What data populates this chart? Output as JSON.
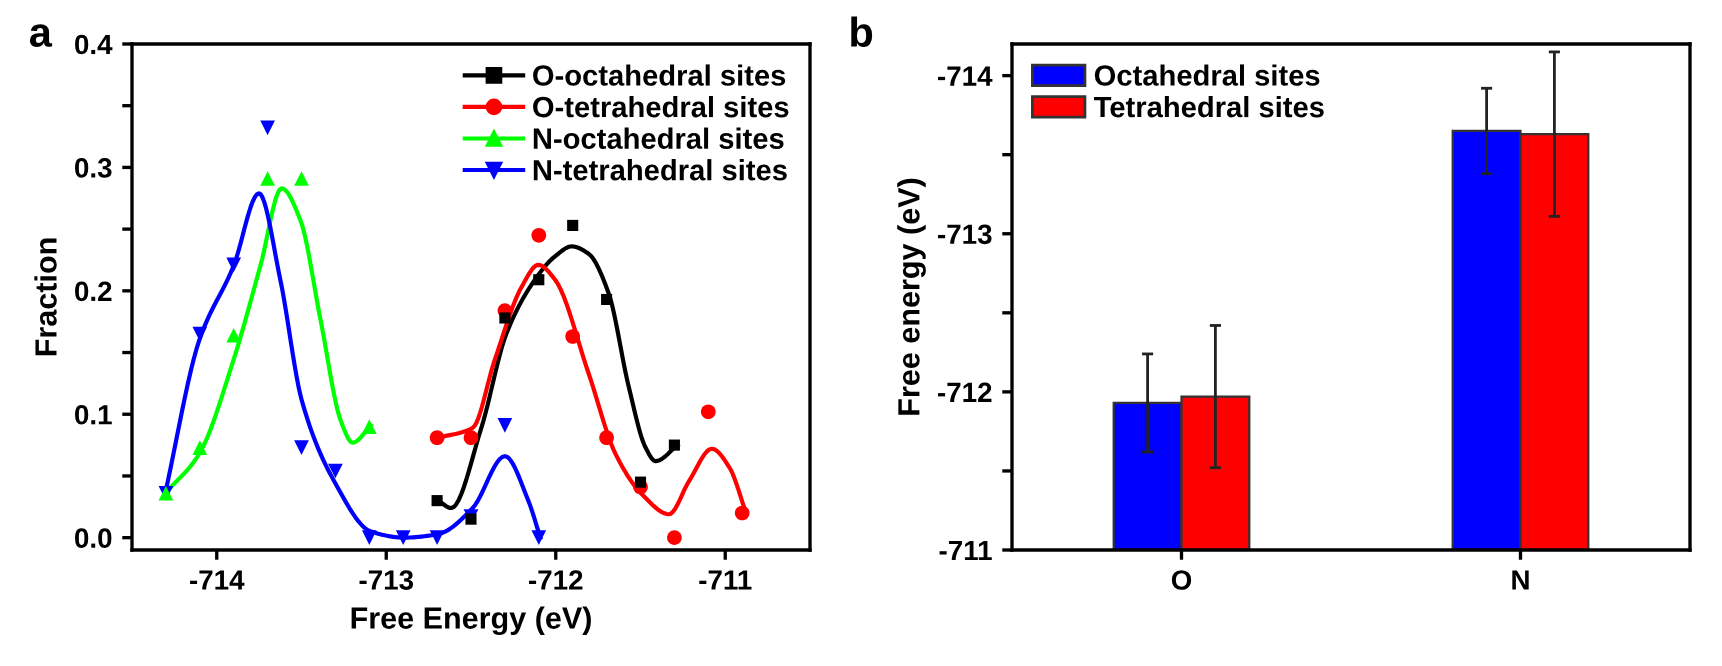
{
  "chart_data": [
    {
      "type": "scatter",
      "annotations": [
        "a"
      ],
      "xlabel": "Free Energy (eV)",
      "ylabel": "Fraction",
      "xlim": [
        -714.5,
        -710.5
      ],
      "xticks": [
        -714,
        -713,
        -712,
        -711
      ],
      "ylim": [
        -0.01,
        0.4
      ],
      "yticks": [
        {
          "value": 0,
          "label": "0.0"
        },
        {
          "value": 0.05,
          "label": null
        },
        0.1,
        {
          "value": 0.15,
          "label": null
        },
        0.2,
        {
          "value": 0.25,
          "label": null
        },
        0.3,
        {
          "value": 0.35,
          "label": null
        },
        0.4
      ],
      "legend": "top right",
      "grid": false,
      "series": [
        {
          "name": "O-octahedral sites",
          "type": "scatter",
          "marker": "square",
          "color": "#000000",
          "x": [
            -712.7,
            -712.5,
            -712.3,
            -712.1,
            -711.9,
            -711.7,
            -711.5,
            -711.3
          ],
          "values": [
            0.03,
            0.015,
            0.178,
            0.209,
            0.253,
            0.193,
            0.045,
            0.075
          ]
        },
        {
          "name": "O-tetrahedral sites",
          "type": "scatter",
          "marker": "circle",
          "color": "#ff0000",
          "x": [
            -712.7,
            -712.5,
            -712.3,
            -712.1,
            -711.9,
            -711.7,
            -711.5,
            -711.3,
            -711.1,
            -710.9
          ],
          "values": [
            0.081,
            0.081,
            0.184,
            0.245,
            0.163,
            0.081,
            0.041,
            0.0,
            0.102,
            0.02
          ]
        },
        {
          "name": "N-octahedral sites",
          "type": "scatter",
          "marker": "triangle",
          "color": "#00ff00",
          "x": [
            -714.3,
            -714.1,
            -713.9,
            -713.7,
            -713.5,
            -713.1
          ],
          "values": [
            0.036,
            0.073,
            0.164,
            0.291,
            0.291,
            0.09
          ]
        },
        {
          "name": "N-tetrahedral sites",
          "type": "scatter",
          "marker": "triangle_down",
          "color": "#0000ff",
          "x": [
            -714.3,
            -714.1,
            -713.9,
            -713.7,
            -713.5,
            -713.3,
            -713.1,
            -712.9,
            -712.7,
            -712.5,
            -712.3,
            -712.1
          ],
          "values": [
            0.036,
            0.165,
            0.221,
            0.332,
            0.073,
            0.054,
            0.0,
            0.0,
            0.0,
            0.017,
            0.091,
            0.0
          ]
        },
        {
          "type": "line",
          "color": "#000000",
          "x": [
            -712.692,
            -712.617,
            -712.439,
            -712.292,
            -712.123,
            -712.004,
            -711.905,
            -711.806,
            -711.688,
            -711.569,
            -711.47,
            -711.411,
            -711.281
          ],
          "values": [
            0.03,
            0.024,
            0.089,
            0.165,
            0.209,
            0.228,
            0.236,
            0.23,
            0.198,
            0.122,
            0.073,
            0.062,
            0.075
          ]
        },
        {
          "type": "line",
          "color": "#ff0000",
          "x": [
            -712.692,
            -712.49,
            -712.36,
            -712.202,
            -712.103,
            -712.004,
            -711.806,
            -711.648,
            -711.49,
            -711.332,
            -711.213,
            -711.079,
            -710.976,
            -710.877
          ],
          "values": [
            0.081,
            0.089,
            0.144,
            0.203,
            0.221,
            0.209,
            0.133,
            0.068,
            0.035,
            0.019,
            0.046,
            0.072,
            0.057,
            0.02
          ]
        },
        {
          "type": "line",
          "color": "#00ff00",
          "x": [
            -714.304,
            -714.103,
            -713.901,
            -713.743,
            -713.617,
            -713.506,
            -713.387,
            -713.269,
            -713.198,
            -713.091
          ],
          "values": [
            0.036,
            0.068,
            0.144,
            0.22,
            0.283,
            0.257,
            0.176,
            0.095,
            0.077,
            0.091
          ]
        },
        {
          "type": "line",
          "color": "#0000ff",
          "x": [
            -714.304,
            -714.103,
            -713.901,
            -713.751,
            -713.625,
            -713.498,
            -713.308,
            -713.091,
            -712.893,
            -712.692,
            -712.49,
            -712.3,
            -712.162,
            -712.091
          ],
          "values": [
            0.036,
            0.16,
            0.22,
            0.279,
            0.209,
            0.111,
            0.046,
            0.005,
            0.0,
            0.003,
            0.024,
            0.066,
            0.03,
            0.0
          ]
        }
      ]
    },
    {
      "type": "bar",
      "annotations": [
        "b"
      ],
      "ylabel": "Free energy (eV)",
      "categories": [
        "O",
        "N"
      ],
      "ylim": [
        -711,
        -714.2
      ],
      "yticks": [
        -711,
        {
          "value": -711.5,
          "label": null
        },
        -712,
        {
          "value": -712.5,
          "label": null
        },
        -713,
        {
          "value": -713.5,
          "label": null
        },
        -714
      ],
      "legend": "top left",
      "grid": false,
      "series": [
        {
          "name": "Octahedral sites",
          "color": "#0000ff",
          "values": [
            -711.93,
            -713.65
          ],
          "errors": [
            0.31,
            0.27
          ]
        },
        {
          "name": "Tetrahedral sites",
          "color": "#ff0000",
          "values": [
            -711.97,
            -713.63
          ],
          "errors": [
            0.45,
            0.52
          ]
        }
      ]
    }
  ]
}
